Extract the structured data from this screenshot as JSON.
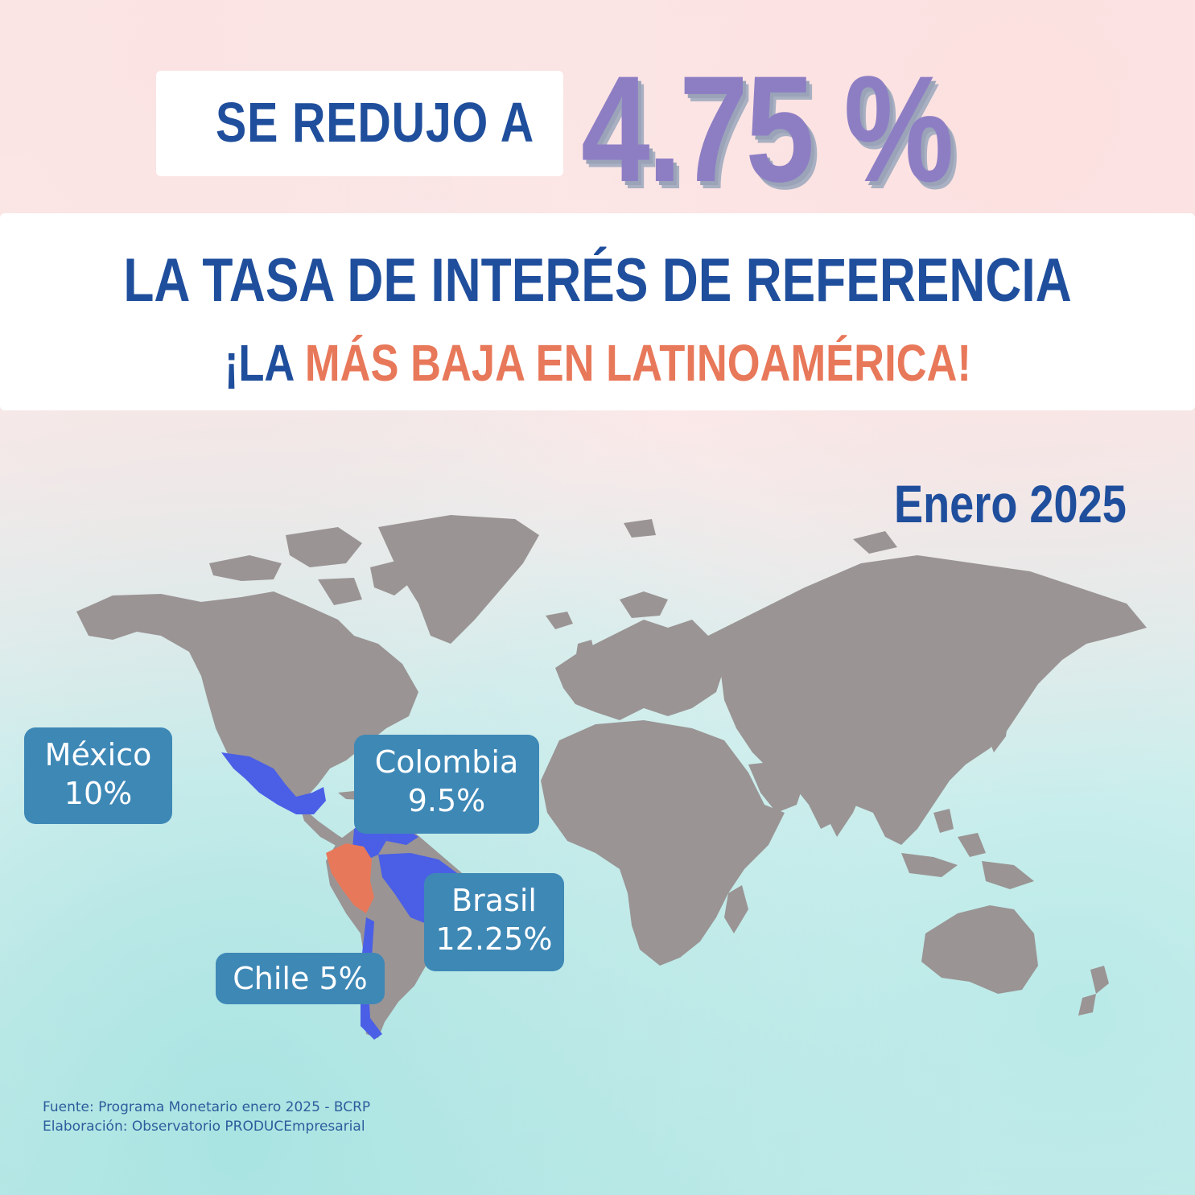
{
  "headline": {
    "prefix": "SE REDUJO A",
    "rate": "4.75 %"
  },
  "banner": {
    "title": "LA TASA DE INTERÉS DE REFERENCIA",
    "subtitle_prefix": "¡LA",
    "subtitle_highlight": "MÁS BAJA EN LATINOAMÉRICA!"
  },
  "date": "Enero 2025",
  "countries": [
    {
      "name": "México",
      "rate": "10%",
      "color": "#4a5fe6"
    },
    {
      "name": "Colombia",
      "rate": "9.5%",
      "color": "#4a5fe6"
    },
    {
      "name": "Brasil",
      "rate": "12.25%",
      "color": "#4a5fe6"
    },
    {
      "name": "Chile",
      "rate": "5%",
      "color": "#4a5fe6"
    }
  ],
  "chile_label": "Chile 5%",
  "highlight_country": {
    "name": "Perú",
    "color": "#e8785a"
  },
  "colors": {
    "land": "#9a9494",
    "navy": "#1f4e9c",
    "coral": "#e8785a",
    "purple": "#8d7ec4",
    "bubble": "#3e88b6"
  },
  "source": {
    "line1": "Fuente: Programa Monetario enero 2025 - BCRP",
    "line2": "Elaboración: Observatorio PRODUCEmpresarial"
  }
}
